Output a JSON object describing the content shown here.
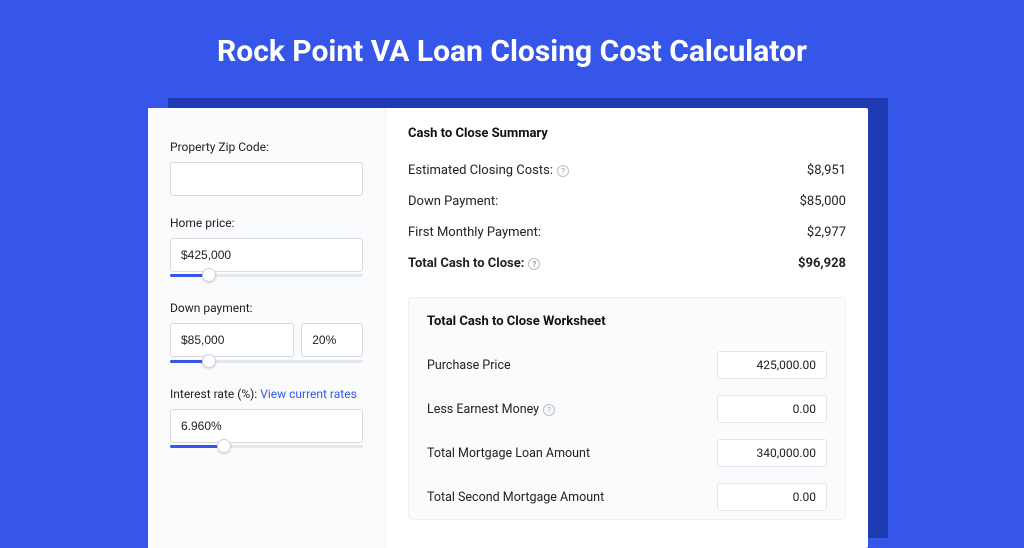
{
  "colors": {
    "page_bg": "#3556e8",
    "card_shadow": "#1f3bb3",
    "card_bg": "#ffffff",
    "left_bg": "#fafbfc",
    "border": "#d7dbe0",
    "slider_fill": "#3556e8",
    "link": "#3556e8"
  },
  "title": "Rock Point VA Loan Closing Cost Calculator",
  "left": {
    "zip": {
      "label": "Property Zip Code:",
      "value": ""
    },
    "home_price": {
      "label": "Home price:",
      "value": "$425,000",
      "slider_pct": 20
    },
    "down_payment": {
      "label": "Down payment:",
      "value": "$85,000",
      "pct": "20%",
      "slider_pct": 20
    },
    "interest": {
      "label_prefix": "Interest rate (%):",
      "link_text": "View current rates",
      "value": "6.960%",
      "slider_pct": 28
    }
  },
  "summary": {
    "title": "Cash to Close Summary",
    "rows": [
      {
        "label": "Estimated Closing Costs:",
        "help": true,
        "value": "$8,951",
        "bold": false
      },
      {
        "label": "Down Payment:",
        "help": false,
        "value": "$85,000",
        "bold": false
      },
      {
        "label": "First Monthly Payment:",
        "help": false,
        "value": "$2,977",
        "bold": false
      },
      {
        "label": "Total Cash to Close:",
        "help": true,
        "value": "$96,928",
        "bold": true
      }
    ]
  },
  "worksheet": {
    "title": "Total Cash to Close Worksheet",
    "rows": [
      {
        "label": "Purchase Price",
        "help": false,
        "value": "425,000.00"
      },
      {
        "label": "Less Earnest Money",
        "help": true,
        "value": "0.00"
      },
      {
        "label": "Total Mortgage Loan Amount",
        "help": false,
        "value": "340,000.00"
      },
      {
        "label": "Total Second Mortgage Amount",
        "help": false,
        "value": "0.00"
      }
    ]
  }
}
